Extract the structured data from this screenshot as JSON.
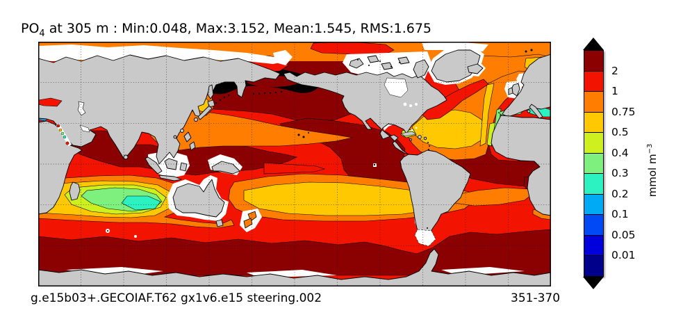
{
  "title": {
    "var": "PO",
    "var_sub": "4",
    "rest": " at 305 m : Min:0.048, Max:3.152, Mean:1.545, RMS:1.675"
  },
  "footer": {
    "run_id": "g.e15b03+.GECOIAF.T62 gx1v6.e15 steering.002",
    "year_range": "351-370"
  },
  "colorbar": {
    "ticks": [
      "2",
      "1",
      "0.75",
      "0.5",
      "0.4",
      "0.3",
      "0.2",
      "0.1",
      "0.05",
      "0.01"
    ],
    "colors_top_to_bottom": [
      "#8b0000",
      "#f31400",
      "#ff7d00",
      "#ffc800",
      "#cdf01e",
      "#7df07d",
      "#2bf2c0",
      "#00aaf5",
      "#0049f5",
      "#0000dd",
      "#00008b"
    ],
    "over_color": "#000000",
    "under_color": "#000000",
    "unit": "mmol m",
    "unit_sup": "−3"
  },
  "map_colors": {
    "land": "#c9c9c9",
    "nodata": "#ffffff",
    "coast": "#000000",
    "grid": "#1a1a1a"
  },
  "chart_data": {
    "type": "filled_contour_map",
    "title": "PO4 at 305 m : Min:0.048, Max:3.152, Mean:1.545, RMS:1.675",
    "variable": "PO4",
    "depth": "305 m",
    "stats": {
      "min": 0.048,
      "max": 3.152,
      "mean": 1.545,
      "rms": 1.675
    },
    "units": "mmol m-3",
    "contour_levels": [
      0.01,
      0.05,
      0.1,
      0.2,
      0.3,
      0.4,
      0.5,
      0.75,
      1,
      2
    ],
    "colors_low_to_high": [
      "#00008b",
      "#0000dd",
      "#0049f5",
      "#00aaf5",
      "#2bf2c0",
      "#7df07d",
      "#cdf01e",
      "#ffc800",
      "#ff7d00",
      "#f31400",
      "#8b0000"
    ],
    "over_level_color": "#000000",
    "projection": "equirectangular world map, Pacific-centered (about 20E to 380E)",
    "graticule_spacing_deg": 30,
    "grid_style": "dotted black graticule every 30 degrees",
    "legend_position": "right vertical colorbar with black over/under arrows",
    "annotations": {
      "bottom_left": "g.e15b03+.GECOIAF.T62 gx1v6.e15 steering.002",
      "bottom_right": "351-370"
    },
    "notable_features": [
      "black patch (>3 mmol m-3, above top contour) in subarctic NW Pacific",
      "dark red (>2) across North Pacific, eastern equatorial Pacific, north Indian Ocean, tropical Atlantic, Southern Ocean band",
      "low-PO4 subtropical gyres: South Indian gyre with green/cyan core (0.2-0.4) west of Australia, North Atlantic amber gyre (0.5-0.75), South Pacific amber gyre, South Atlantic orange tongue",
      "very low values (<0.2) in Mediterranean (green/cyan) and Red Sea spots",
      "land masked light gray; missing data white (Arctic shelves, Hudson Bay, Caspian, Indonesian seas, Antarctic coast)"
    ]
  }
}
